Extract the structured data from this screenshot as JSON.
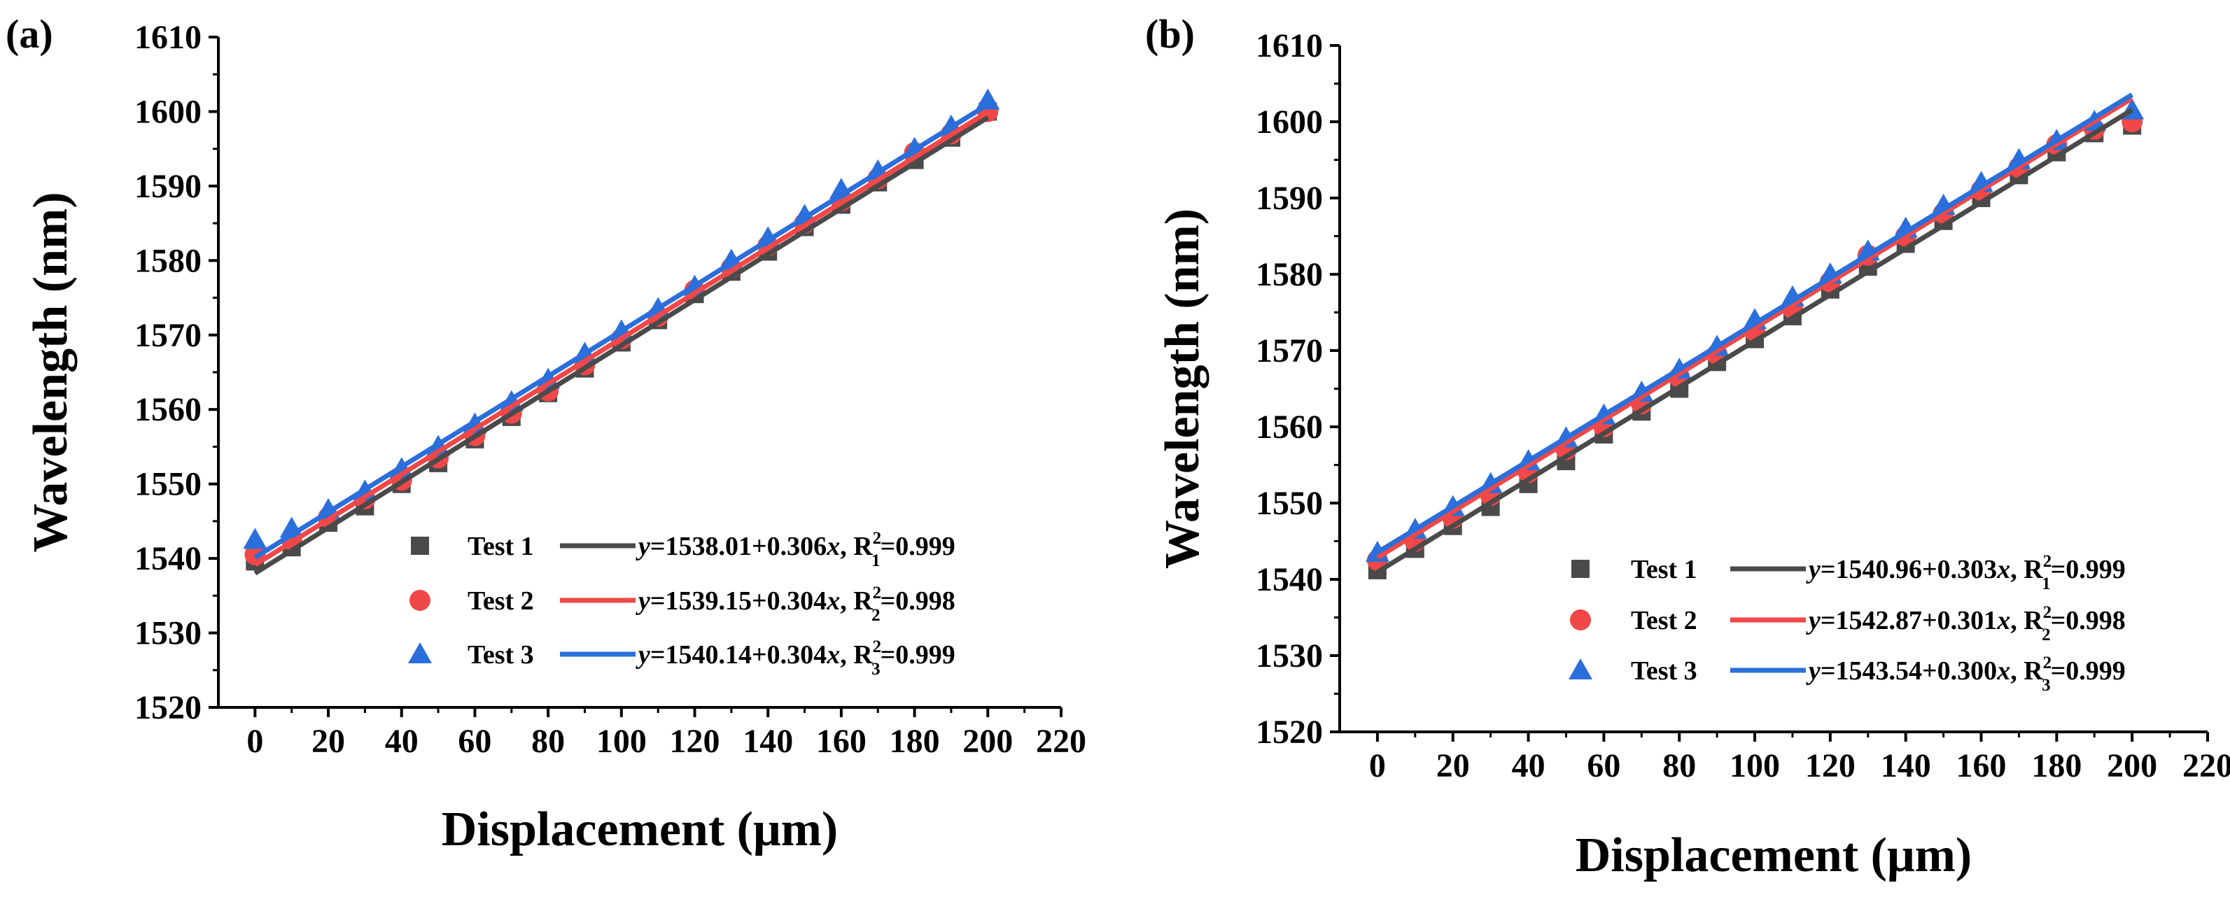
{
  "chart_data": [
    {
      "type": "scatter",
      "panel_label": "(a)",
      "xlabel": "Displacement (μm)",
      "ylabel": "Wavelength (nm)",
      "xlim": [
        -10,
        220
      ],
      "ylim": [
        1520,
        1610
      ],
      "xticks": [
        0,
        20,
        40,
        60,
        80,
        100,
        120,
        140,
        160,
        180,
        200,
        220
      ],
      "yticks": [
        1520,
        1530,
        1540,
        1550,
        1560,
        1570,
        1580,
        1590,
        1600,
        1610
      ],
      "grid": false,
      "legend_position": "bottom-right",
      "x": [
        0,
        10,
        20,
        30,
        40,
        50,
        60,
        70,
        80,
        90,
        100,
        110,
        120,
        130,
        140,
        150,
        160,
        170,
        180,
        190,
        200
      ],
      "series": [
        {
          "name": "Test 1",
          "marker": "square",
          "color": "#4a4a4a",
          "values": [
            1539.6,
            1541.5,
            1544.8,
            1547.0,
            1550.0,
            1552.8,
            1556.0,
            1559.0,
            1562.2,
            1565.5,
            1569.0,
            1572.0,
            1575.5,
            1578.5,
            1581.2,
            1584.5,
            1587.5,
            1590.5,
            1593.5,
            1596.5,
            1600.0
          ],
          "fit": {
            "intercept": 1538.01,
            "slope": 0.306,
            "r2": "0.999",
            "eq_prefix": "y",
            "eq_body": "=1538.01+0.306",
            "eq_x": "x",
            "eq_r": ", R",
            "eq_sup": "2",
            "eq_sub": "1",
            "eq_value": "=0.999"
          }
        },
        {
          "name": "Test 2",
          "marker": "circle",
          "color": "#f04848",
          "values": [
            1540.5,
            1542.5,
            1545.5,
            1548.0,
            1550.5,
            1553.5,
            1556.5,
            1559.5,
            1562.5,
            1566.0,
            1569.5,
            1572.5,
            1576.0,
            1579.0,
            1582.0,
            1585.0,
            1588.0,
            1591.0,
            1594.5,
            1597.0,
            1600.0
          ],
          "fit": {
            "intercept": 1539.15,
            "slope": 0.304,
            "r2": "0.998",
            "eq_prefix": "y",
            "eq_body": "=1539.15+0.304",
            "eq_x": "x",
            "eq_r": ", R",
            "eq_sup": "2",
            "eq_sub": "2",
            "eq_value": "=0.998"
          }
        },
        {
          "name": "Test 3",
          "marker": "triangle",
          "color": "#2a6fdb",
          "values": [
            1542.5,
            1544.0,
            1546.5,
            1549.0,
            1552.0,
            1555.0,
            1558.0,
            1561.0,
            1564.0,
            1567.5,
            1570.5,
            1573.5,
            1576.5,
            1580.0,
            1583.0,
            1586.0,
            1589.5,
            1592.0,
            1595.0,
            1598.0,
            1601.5
          ],
          "fit": {
            "intercept": 1540.14,
            "slope": 0.304,
            "r2": "0.999",
            "eq_prefix": "y",
            "eq_body": "=1540.14+0.304",
            "eq_x": "x",
            "eq_r": ", R",
            "eq_sup": "2",
            "eq_sub": "3",
            "eq_value": "=0.999"
          }
        }
      ]
    },
    {
      "type": "scatter",
      "panel_label": "(b)",
      "xlabel": "Displacement (μm)",
      "ylabel": "Wavelength (nm)",
      "xlim": [
        -10,
        220
      ],
      "ylim": [
        1520,
        1610
      ],
      "xticks": [
        0,
        20,
        40,
        60,
        80,
        100,
        120,
        140,
        160,
        180,
        200,
        220
      ],
      "yticks": [
        1520,
        1530,
        1540,
        1550,
        1560,
        1570,
        1580,
        1590,
        1600,
        1610
      ],
      "grid": false,
      "legend_position": "bottom-right",
      "x": [
        0,
        10,
        20,
        30,
        40,
        50,
        60,
        70,
        80,
        90,
        100,
        110,
        120,
        130,
        140,
        150,
        160,
        170,
        180,
        190,
        200
      ],
      "series": [
        {
          "name": "Test 1",
          "marker": "square",
          "color": "#4a4a4a",
          "values": [
            1541.2,
            1544.0,
            1547.0,
            1549.5,
            1552.5,
            1555.5,
            1559.0,
            1562.0,
            1565.0,
            1568.5,
            1571.5,
            1574.5,
            1578.0,
            1581.0,
            1584.0,
            1587.0,
            1590.0,
            1593.0,
            1596.0,
            1598.5,
            1599.5
          ],
          "fit": {
            "intercept": 1540.96,
            "slope": 0.303,
            "r2": "0.999",
            "eq_prefix": "y",
            "eq_body": "=1540.96+0.303",
            "eq_x": "x",
            "eq_r": ", R",
            "eq_sup": "2",
            "eq_sub": "1",
            "eq_value": "=0.999"
          }
        },
        {
          "name": "Test 2",
          "marker": "circle",
          "color": "#f04848",
          "values": [
            1542.5,
            1545.0,
            1548.0,
            1551.0,
            1554.0,
            1557.0,
            1560.0,
            1563.0,
            1566.5,
            1569.5,
            1572.5,
            1575.5,
            1579.0,
            1582.5,
            1585.0,
            1588.0,
            1591.0,
            1594.0,
            1597.0,
            1599.0,
            1600.0
          ],
          "fit": {
            "intercept": 1542.87,
            "slope": 0.301,
            "r2": "0.998",
            "eq_prefix": "y",
            "eq_body": "=1542.87+0.301",
            "eq_x": "x",
            "eq_r": ", R",
            "eq_sup": "2",
            "eq_sub": "2",
            "eq_value": "=0.998"
          }
        },
        {
          "name": "Test 3",
          "marker": "triangle",
          "color": "#2a6fdb",
          "values": [
            1543.5,
            1546.5,
            1549.5,
            1552.5,
            1555.5,
            1558.5,
            1561.5,
            1564.5,
            1567.5,
            1570.5,
            1574.0,
            1577.0,
            1580.0,
            1583.0,
            1586.0,
            1589.0,
            1592.0,
            1595.0,
            1597.5,
            1600.0,
            1601.5
          ],
          "fit": {
            "intercept": 1543.54,
            "slope": 0.3,
            "r2": "0.999",
            "eq_prefix": "y",
            "eq_body": "=1543.54+0.300",
            "eq_x": "x",
            "eq_r": ", R",
            "eq_sup": "2",
            "eq_sub": "3",
            "eq_value": "=0.999"
          }
        }
      ]
    }
  ]
}
